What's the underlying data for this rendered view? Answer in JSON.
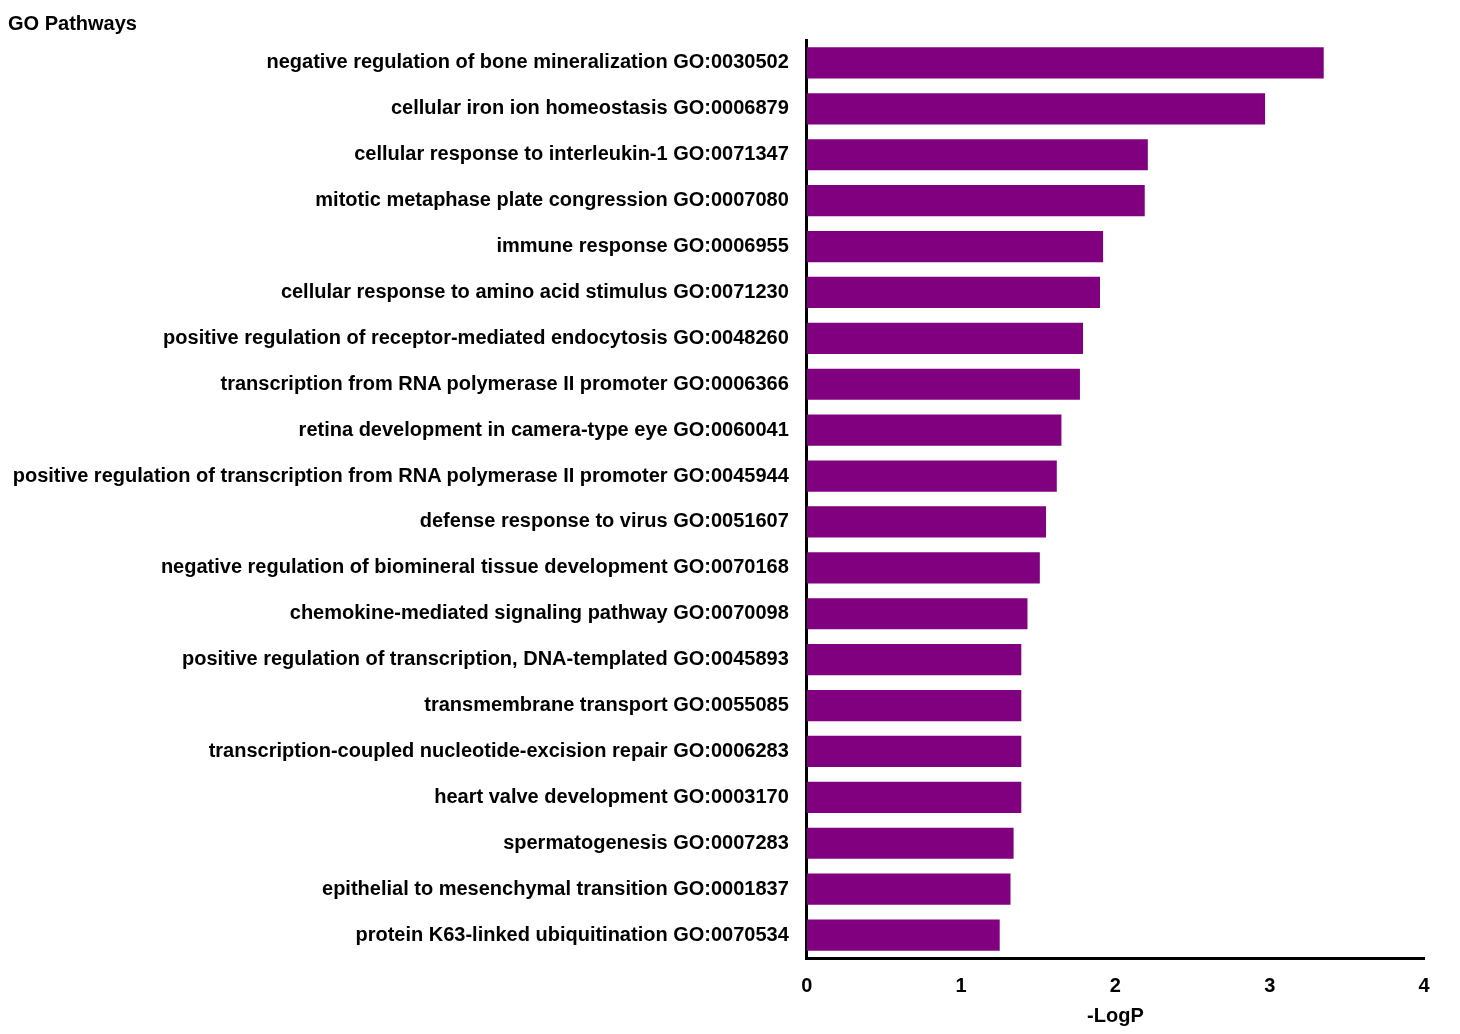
{
  "chart_data": {
    "type": "bar",
    "orientation": "horizontal",
    "title": "GO Pathways",
    "xlabel": "-LogP",
    "categories": [
      "negative regulation of bone mineralization GO:0030502",
      "cellular iron ion homeostasis GO:0006879",
      "cellular response to interleukin-1 GO:0071347",
      "mitotic metaphase plate congression GO:0007080",
      "immune response GO:0006955",
      "cellular response to amino acid stimulus GO:0071230",
      "positive regulation of receptor-mediated endocytosis GO:0048260",
      "transcription from RNA polymerase II promoter GO:0006366",
      "retina development in camera-type eye GO:0060041",
      "positive regulation of transcription from RNA polymerase II promoter GO:0045944",
      "defense response to virus GO:0051607",
      "negative regulation of biomineral tissue development GO:0070168",
      "chemokine-mediated signaling pathway GO:0070098",
      "positive regulation of transcription, DNA-templated GO:0045893",
      "transmembrane transport GO:0055085",
      "transcription-coupled nucleotide-excision repair GO:0006283",
      "heart valve development GO:0003170",
      "spermatogenesis GO:0007283",
      "epithelial to mesenchymal transition GO:0001837",
      "protein K63-linked ubiquitination GO:0070534"
    ],
    "values": [
      3.35,
      2.97,
      2.21,
      2.19,
      1.92,
      1.9,
      1.79,
      1.77,
      1.65,
      1.62,
      1.55,
      1.51,
      1.43,
      1.39,
      1.39,
      1.39,
      1.39,
      1.34,
      1.32,
      1.25
    ],
    "color": "#800080",
    "xlim": [
      0,
      4
    ],
    "xticks": [
      0,
      1,
      2,
      3,
      4
    ],
    "grid": false,
    "legend": false
  }
}
